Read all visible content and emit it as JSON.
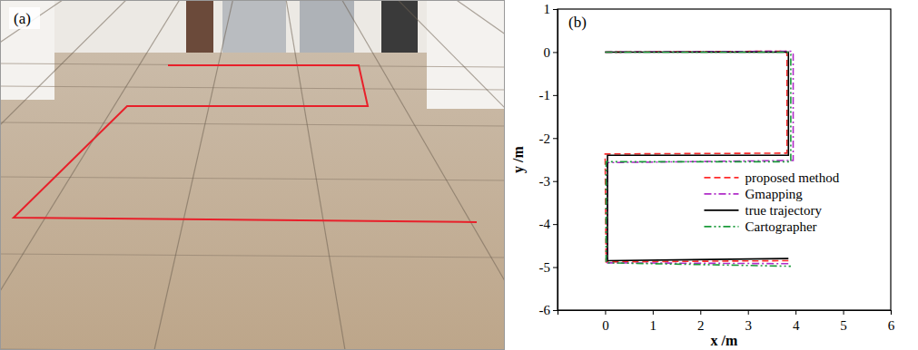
{
  "chart_data": [
    {
      "type": "image",
      "title": "(a)"
    },
    {
      "type": "line",
      "title": "(b)",
      "x_label": "x /m",
      "y_label": "y /m",
      "xlim": [
        -1,
        6
      ],
      "xticks": [
        0,
        1,
        2,
        3,
        4,
        5,
        6
      ],
      "ylim": [
        -6,
        1
      ],
      "yticks": [
        -6,
        -5,
        -4,
        -3,
        -2,
        -1,
        0,
        1
      ],
      "legend": "center right",
      "series": [
        {
          "name": "proposed method",
          "color": "#ff2a2a",
          "line_style": "dashed",
          "x": [
            0,
            3.8,
            3.82,
            3.82,
            0.0,
            0.02,
            3.85
          ],
          "values": [
            0,
            0.02,
            -0.05,
            -2.35,
            -2.37,
            -4.88,
            -4.85
          ]
        },
        {
          "name": "Gmapping",
          "color": "#b02cc8",
          "line_style": "dashdot",
          "x": [
            0,
            3.9,
            3.95,
            3.95,
            0.05,
            0.05,
            3.9
          ],
          "values": [
            0,
            0.02,
            -0.05,
            -2.52,
            -2.57,
            -4.9,
            -4.92
          ]
        },
        {
          "name": "true trajectory",
          "color": "#000000",
          "line_style": "solid",
          "x": [
            0,
            3.85,
            3.85,
            0.05,
            0.05,
            3.85
          ],
          "values": [
            0,
            0,
            -2.4,
            -2.4,
            -4.85,
            -4.8
          ]
        },
        {
          "name": "Cartographer",
          "color": "#1a9a3a",
          "line_style": "dashdotdot",
          "x": [
            0,
            3.85,
            3.9,
            3.9,
            0.02,
            0.02,
            3.9
          ],
          "values": [
            0,
            0,
            -0.05,
            -2.55,
            -2.55,
            -4.9,
            -4.98
          ]
        }
      ]
    }
  ]
}
